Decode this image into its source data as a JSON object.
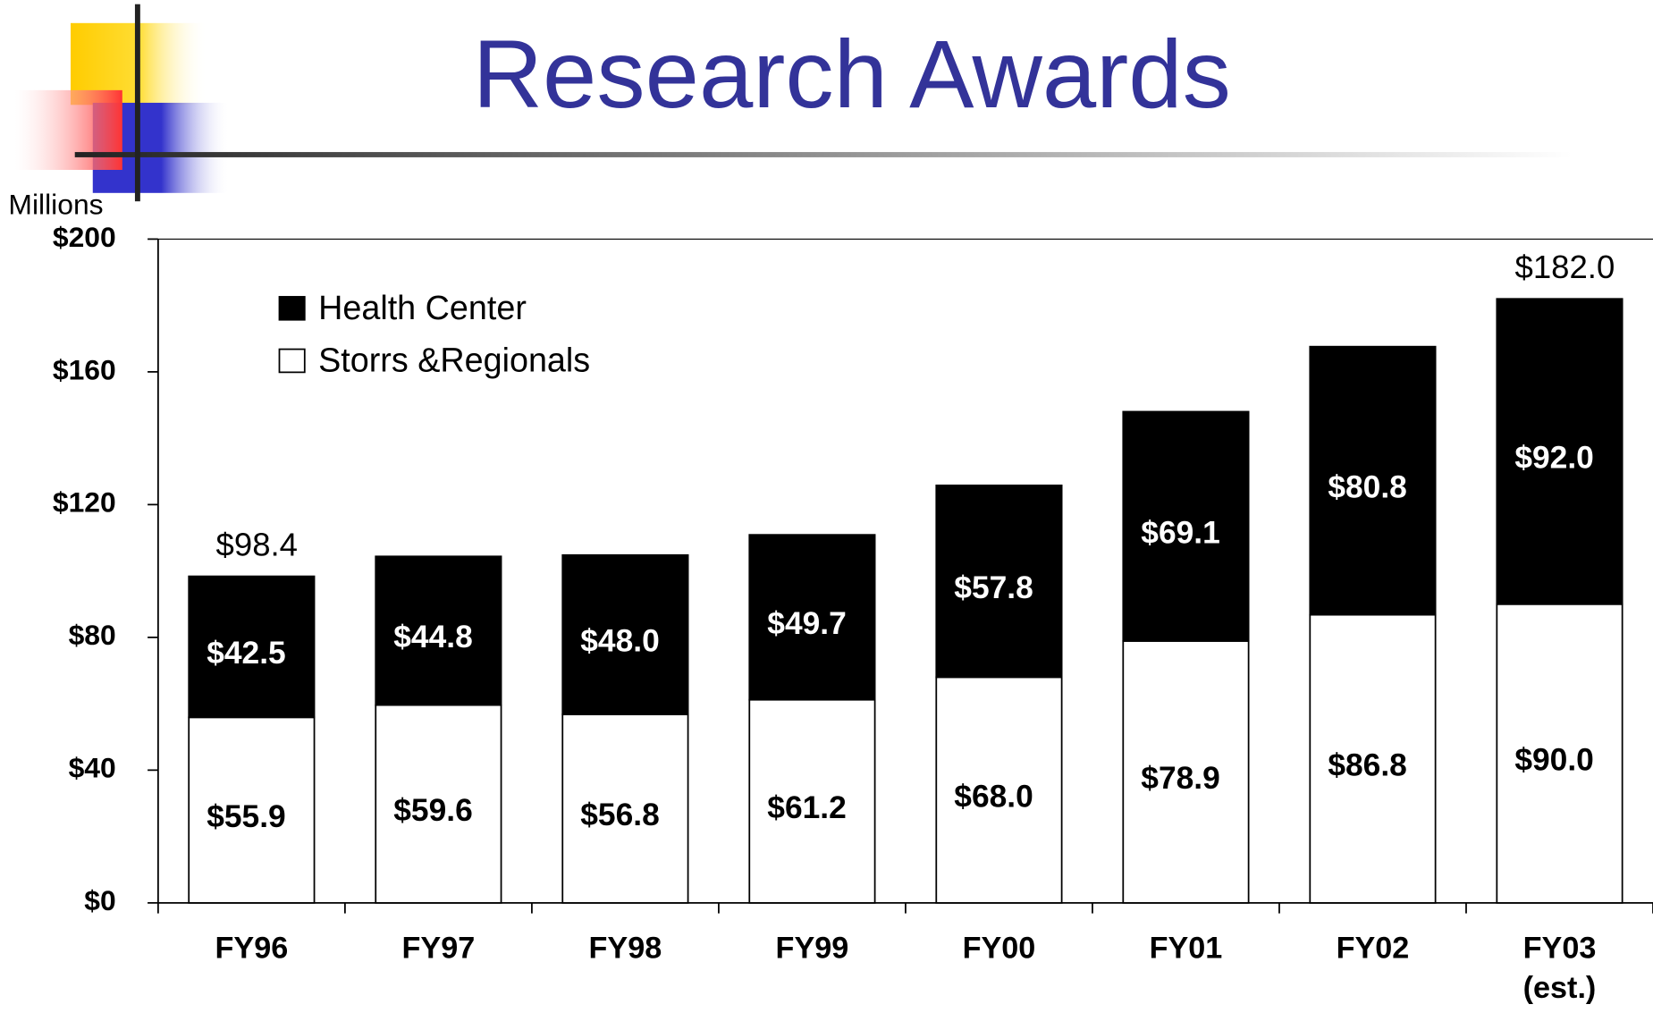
{
  "chart_data": {
    "type": "stacked_bar",
    "title": "Research Awards",
    "y_label": "Millions",
    "categories": [
      "FY96",
      "FY97",
      "FY98",
      "FY99",
      "FY00",
      "FY01",
      "FY02",
      "FY03 (est.)"
    ],
    "series": [
      {
        "name": "Health Center",
        "color": "#000000",
        "label_color": "#ffffff",
        "values": [
          42.5,
          44.8,
          48.0,
          49.7,
          57.8,
          69.1,
          80.8,
          92.0
        ],
        "value_labels": [
          "$42.5",
          "$44.8",
          "$48.0",
          "$49.7",
          "$57.8",
          "$69.1",
          "$80.8",
          "$92.0"
        ]
      },
      {
        "name": "Storrs &Regionals",
        "color": "#ffffff",
        "label_color": "#000000",
        "values": [
          55.9,
          59.6,
          56.8,
          61.2,
          68.0,
          78.9,
          86.8,
          90.0
        ],
        "value_labels": [
          "$55.9",
          "$59.6",
          "$56.8",
          "$61.2",
          "$68.0",
          "$78.9",
          "$86.8",
          "$90.0"
        ]
      }
    ],
    "totals": [
      98.4,
      null,
      null,
      null,
      null,
      null,
      null,
      182.0
    ],
    "total_labels": [
      "$98.4",
      null,
      null,
      null,
      null,
      null,
      null,
      "$182.0"
    ],
    "ylim": [
      0,
      200
    ],
    "yticks": [
      {
        "value": 0,
        "label": "$0"
      },
      {
        "value": 40,
        "label": "$40"
      },
      {
        "value": 80,
        "label": "$80"
      },
      {
        "value": 120,
        "label": "$120"
      },
      {
        "value": 160,
        "label": "$160"
      },
      {
        "value": 200,
        "label": "$200"
      }
    ],
    "legend": "upper left",
    "grid": false
  }
}
